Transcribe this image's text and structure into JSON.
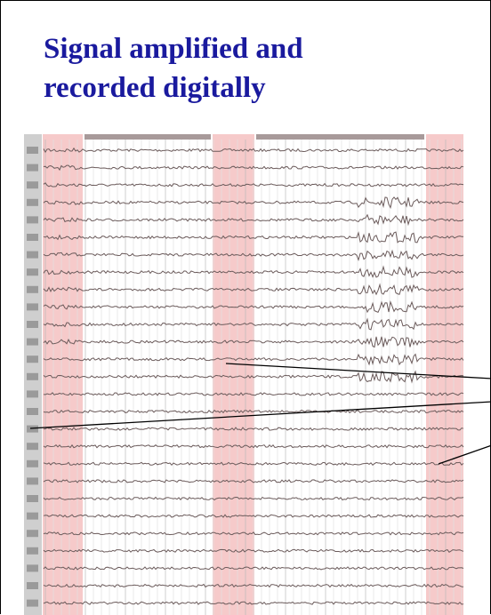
{
  "title_lines": [
    "Signal amplified and",
    "recorded digitally"
  ]
}
